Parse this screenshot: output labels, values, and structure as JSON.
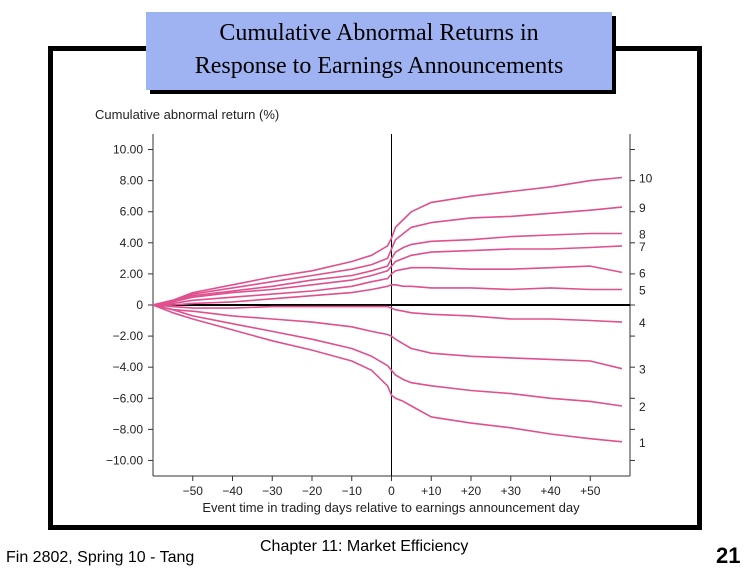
{
  "slide": {
    "title_line1": "Cumulative Abnormal Returns in",
    "title_line2": "Response to Earnings Announcements",
    "footer_left": "Fin 2802, Spring 10 - Tang",
    "footer_center": "Chapter 11: Market Efficiency",
    "page_number": "21"
  },
  "colors": {
    "series": "#e0508e",
    "zero_line": "#000000",
    "event_line": "#000000",
    "axis_text": "#222222",
    "title_bg": "#9fb3f2"
  },
  "chart_data": {
    "type": "line",
    "ylabel": "Cumulative abnormal return (%)",
    "xlabel": "Event time in trading days relative to earnings announcement day",
    "xlim": [
      -60,
      60
    ],
    "ylim": [
      -11,
      11
    ],
    "xticks": [
      -50,
      -40,
      -30,
      -20,
      -10,
      0,
      10,
      20,
      30,
      40,
      50
    ],
    "xtick_labels": [
      "−50",
      "−40",
      "−30",
      "−20",
      "−10",
      "0",
      "+10",
      "+20",
      "+30",
      "+40",
      "+50"
    ],
    "yticks": [
      10,
      8,
      6,
      4,
      2,
      0,
      -2,
      -4,
      -6,
      -8,
      -10
    ],
    "ytick_labels": [
      "10.00",
      "8.00",
      "6.00",
      "4.00",
      "2.00",
      "0",
      "−2.00",
      "−4.00",
      "−6.00",
      "−8.00",
      "−10.00"
    ],
    "grid": false,
    "series": [
      {
        "name": "10",
        "x": [
          -60,
          -55,
          -50,
          -40,
          -30,
          -20,
          -10,
          -5,
          -1,
          0,
          1,
          3,
          5,
          10,
          20,
          30,
          40,
          50,
          58
        ],
        "y": [
          0,
          0.3,
          0.8,
          1.3,
          1.8,
          2.2,
          2.8,
          3.2,
          3.8,
          4.3,
          5.0,
          5.5,
          6.0,
          6.6,
          7.0,
          7.3,
          7.6,
          8.0,
          8.2
        ]
      },
      {
        "name": "9",
        "x": [
          -60,
          -55,
          -50,
          -40,
          -30,
          -20,
          -10,
          -5,
          -1,
          0,
          1,
          3,
          5,
          10,
          20,
          30,
          40,
          50,
          58
        ],
        "y": [
          0,
          0.3,
          0.7,
          1.1,
          1.5,
          1.9,
          2.3,
          2.6,
          3.0,
          3.6,
          4.2,
          4.6,
          5.0,
          5.3,
          5.6,
          5.7,
          5.9,
          6.1,
          6.3
        ]
      },
      {
        "name": "8",
        "x": [
          -60,
          -55,
          -50,
          -40,
          -30,
          -20,
          -10,
          -5,
          -1,
          0,
          1,
          3,
          5,
          10,
          20,
          30,
          40,
          50,
          58
        ],
        "y": [
          0,
          0.3,
          0.6,
          0.9,
          1.2,
          1.6,
          1.9,
          2.2,
          2.5,
          3.0,
          3.4,
          3.7,
          3.9,
          4.1,
          4.2,
          4.4,
          4.5,
          4.6,
          4.6
        ]
      },
      {
        "name": "7",
        "x": [
          -60,
          -55,
          -50,
          -40,
          -30,
          -20,
          -10,
          -5,
          -1,
          0,
          1,
          3,
          5,
          10,
          20,
          30,
          40,
          50,
          58
        ],
        "y": [
          0,
          0.2,
          0.5,
          0.8,
          1.0,
          1.3,
          1.6,
          1.9,
          2.2,
          2.5,
          2.8,
          3.0,
          3.2,
          3.4,
          3.5,
          3.6,
          3.6,
          3.7,
          3.8
        ]
      },
      {
        "name": "6",
        "x": [
          -60,
          -55,
          -50,
          -40,
          -30,
          -20,
          -10,
          -5,
          -1,
          0,
          1,
          3,
          5,
          10,
          20,
          30,
          40,
          50,
          58
        ],
        "y": [
          0,
          0.1,
          0.3,
          0.5,
          0.7,
          0.9,
          1.2,
          1.5,
          1.7,
          2.0,
          2.2,
          2.3,
          2.4,
          2.4,
          2.3,
          2.3,
          2.4,
          2.5,
          2.1
        ]
      },
      {
        "name": "5",
        "x": [
          -60,
          -55,
          -50,
          -40,
          -30,
          -20,
          -10,
          -5,
          -1,
          0,
          1,
          3,
          5,
          10,
          20,
          30,
          40,
          50,
          58
        ],
        "y": [
          0,
          0.0,
          0.1,
          0.2,
          0.4,
          0.6,
          0.8,
          1.0,
          1.2,
          1.3,
          1.3,
          1.2,
          1.2,
          1.1,
          1.1,
          1.0,
          1.1,
          1.0,
          1.0
        ]
      },
      {
        "name": "4",
        "x": [
          -60,
          -55,
          -50,
          -40,
          -30,
          -20,
          -10,
          -5,
          -1,
          0,
          1,
          3,
          5,
          10,
          20,
          30,
          40,
          50,
          58
        ],
        "y": [
          0,
          -0.1,
          -0.2,
          -0.2,
          -0.1,
          -0.1,
          -0.1,
          -0.1,
          -0.1,
          -0.2,
          -0.3,
          -0.4,
          -0.5,
          -0.6,
          -0.7,
          -0.9,
          -0.9,
          -1.0,
          -1.1
        ]
      },
      {
        "name": "3",
        "x": [
          -60,
          -55,
          -50,
          -40,
          -30,
          -20,
          -10,
          -5,
          -1,
          0,
          1,
          3,
          5,
          10,
          20,
          30,
          40,
          50,
          58
        ],
        "y": [
          0,
          -0.3,
          -0.4,
          -0.7,
          -0.9,
          -1.1,
          -1.4,
          -1.7,
          -1.9,
          -2.0,
          -2.2,
          -2.5,
          -2.8,
          -3.1,
          -3.3,
          -3.4,
          -3.5,
          -3.6,
          -4.1
        ]
      },
      {
        "name": "2",
        "x": [
          -60,
          -55,
          -50,
          -40,
          -30,
          -20,
          -10,
          -5,
          -1,
          0,
          1,
          3,
          5,
          10,
          20,
          30,
          40,
          50,
          58
        ],
        "y": [
          0,
          -0.3,
          -0.7,
          -1.2,
          -1.7,
          -2.2,
          -2.8,
          -3.3,
          -3.9,
          -4.2,
          -4.5,
          -4.8,
          -5.0,
          -5.2,
          -5.5,
          -5.7,
          -6.0,
          -6.2,
          -6.5
        ]
      },
      {
        "name": "1",
        "x": [
          -60,
          -55,
          -50,
          -40,
          -30,
          -20,
          -10,
          -5,
          -1,
          0,
          1,
          3,
          5,
          10,
          20,
          30,
          40,
          50,
          58
        ],
        "y": [
          0,
          -0.5,
          -0.9,
          -1.6,
          -2.3,
          -2.9,
          -3.6,
          -4.2,
          -5.2,
          -5.8,
          -6.0,
          -6.2,
          -6.5,
          -7.2,
          -7.6,
          -7.9,
          -8.3,
          -8.6,
          -8.8
        ]
      }
    ]
  }
}
